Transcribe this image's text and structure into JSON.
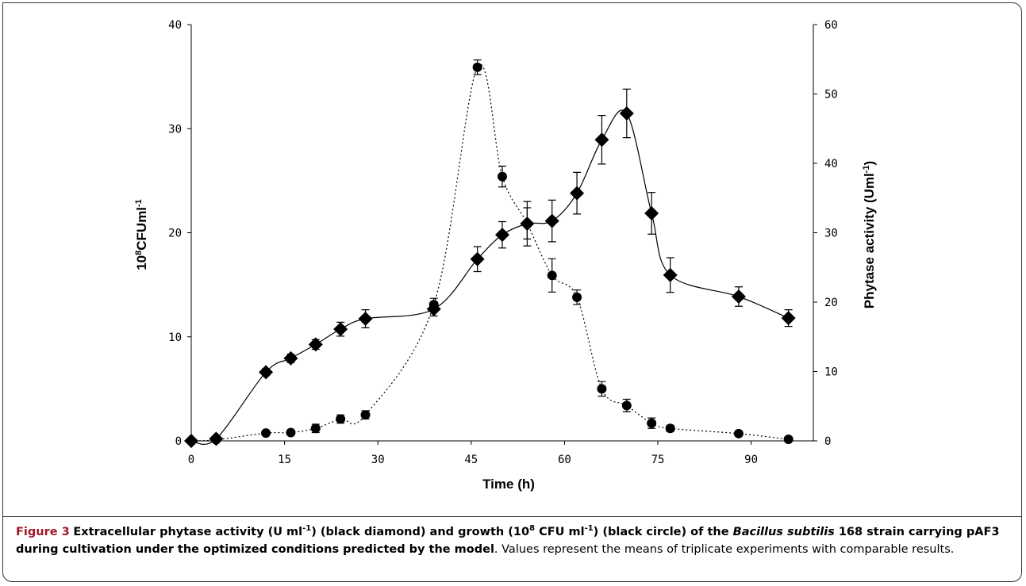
{
  "chart_data": {
    "type": "line",
    "x_label": "Time (h)",
    "y_label": [
      "10",
      "8",
      "CFUml",
      "-1"
    ],
    "y2_label": [
      "Phytase activity (Uml",
      "-1",
      ")"
    ],
    "x": [
      0,
      4,
      12,
      16,
      20,
      24,
      28,
      39,
      46,
      50,
      54,
      58,
      62,
      66,
      70,
      74,
      77,
      88,
      96
    ],
    "series": [
      {
        "name": "Phytase activity",
        "color": "#000000",
        "axis": "y2",
        "marker": "diamond",
        "dash": "solid",
        "values": [
          0,
          0.3,
          9.9,
          11.9,
          13.9,
          16.1,
          17.6,
          19.0,
          26.2,
          29.7,
          31.3,
          31.7,
          35.7,
          43.4,
          47.2,
          32.8,
          23.9,
          20.8,
          17.7
        ],
        "errors": [
          0,
          0.3,
          0.5,
          0.6,
          0.7,
          1.0,
          1.3,
          1.0,
          1.8,
          1.9,
          3.2,
          3.0,
          3.0,
          3.5,
          3.5,
          3.0,
          2.5,
          1.4,
          1.2
        ]
      },
      {
        "name": "Growth",
        "color": "#000000",
        "axis": "y",
        "marker": "circle",
        "dash": "dotted",
        "values": [
          0,
          0.1,
          0.75,
          0.8,
          1.2,
          2.1,
          2.5,
          13.1,
          35.9,
          25.4,
          20.9,
          15.9,
          13.8,
          5.0,
          3.4,
          1.7,
          1.2,
          0.7,
          0.15
        ],
        "errors": [
          0,
          0,
          0.1,
          0.2,
          0.4,
          0.4,
          0.4,
          0.6,
          0.7,
          1.0,
          1.5,
          1.6,
          0.7,
          0.7,
          0.6,
          0.5,
          0.3,
          0.2,
          0.1
        ]
      }
    ],
    "xlim": [
      0,
      100
    ],
    "xticks": [
      0,
      15,
      30,
      45,
      60,
      75,
      90
    ],
    "ylim": [
      0,
      40
    ],
    "yticks": [
      0,
      10,
      20,
      30,
      40
    ],
    "y2lim": [
      0,
      60
    ],
    "y2ticks": [
      0,
      10,
      20,
      30,
      40,
      50,
      60
    ],
    "grid": false
  },
  "caption": {
    "label": "Figure 3",
    "bold": [
      "Extracellular phytase activity (U ml",
      "-1",
      ") (black diamond) and growth (10",
      "8",
      " CFU ml",
      "-1",
      ") (black circle) of the ",
      "Bacillus subtilis",
      " 168 strain carrying pAF3 during cultivation under the optimized conditions predicted by the model"
    ],
    "text": ". Values represent the means of triplicate experiments with comparable results."
  }
}
